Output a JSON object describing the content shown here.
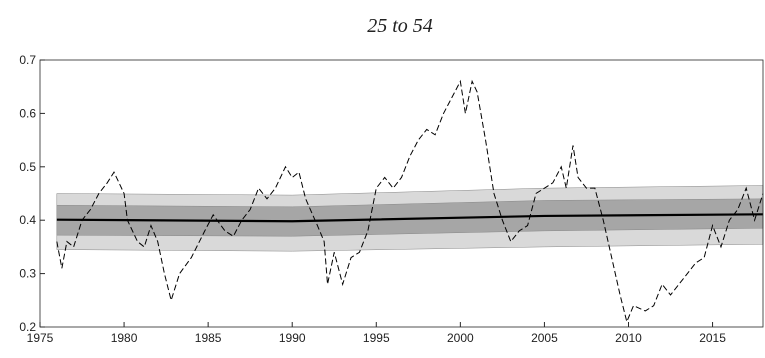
{
  "chart_data": {
    "type": "line",
    "title": "25 to 54",
    "xlim": [
      1975,
      2018
    ],
    "xticks": [
      1975,
      1980,
      1985,
      1990,
      1995,
      2000,
      2005,
      2010,
      2015
    ],
    "ylim": [
      0.2,
      0.7
    ],
    "yticks": [
      0.2,
      0.3,
      0.4,
      0.5,
      0.6,
      0.7
    ],
    "bands": [
      {
        "color": "#d9d9d9",
        "x": [
          1976,
          1990,
          2005,
          2018
        ],
        "lower": [
          0.345,
          0.342,
          0.35,
          0.355
        ],
        "upper": [
          0.45,
          0.447,
          0.46,
          0.465
        ]
      },
      {
        "color": "#a6a6a6",
        "x": [
          1976,
          1990,
          2005,
          2018
        ],
        "lower": [
          0.372,
          0.37,
          0.38,
          0.385
        ],
        "upper": [
          0.428,
          0.425,
          0.437,
          0.44
        ]
      }
    ],
    "series": [
      {
        "style": "solid",
        "color": "#000000",
        "x": [
          1976,
          1990,
          2005,
          2018
        ],
        "values": [
          0.401,
          0.398,
          0.408,
          0.411
        ]
      },
      {
        "style": "dashed",
        "color": "#000000",
        "x": [
          1976,
          1976.3,
          1976.6,
          1977,
          1977.5,
          1978,
          1978.5,
          1979,
          1979.4,
          1979.7,
          1980,
          1980.2,
          1980.8,
          1981.2,
          1981.6,
          1982,
          1982.4,
          1982.8,
          1983.3,
          1984,
          1984.8,
          1985.3,
          1986,
          1986.5,
          1987,
          1987.5,
          1988,
          1988.5,
          1989,
          1989.6,
          1990,
          1990.4,
          1990.8,
          1991.5,
          1991.9,
          1992.1,
          1992.5,
          1993,
          1993.5,
          1994,
          1994.5,
          1995,
          1995.5,
          1996,
          1996.5,
          1997,
          1997.5,
          1998,
          1998.5,
          1999,
          1999.5,
          2000,
          2000.3,
          2000.7,
          2001,
          2001.5,
          2002,
          2002.5,
          2003,
          2003.5,
          2004,
          2004.5,
          2005,
          2005.5,
          2006,
          2006.3,
          2006.7,
          2007,
          2007.5,
          2008,
          2008.5,
          2009,
          2009.5,
          2009.9,
          2010.3,
          2011,
          2011.5,
          2012,
          2012.5,
          2013,
          2014,
          2014.5,
          2015,
          2015.5,
          2016,
          2016.5,
          2017,
          2017.5,
          2018
        ],
        "values": [
          0.36,
          0.31,
          0.36,
          0.35,
          0.4,
          0.42,
          0.45,
          0.47,
          0.49,
          0.47,
          0.45,
          0.4,
          0.36,
          0.35,
          0.39,
          0.36,
          0.3,
          0.25,
          0.3,
          0.33,
          0.38,
          0.41,
          0.38,
          0.37,
          0.4,
          0.42,
          0.46,
          0.44,
          0.46,
          0.5,
          0.48,
          0.49,
          0.44,
          0.39,
          0.36,
          0.28,
          0.34,
          0.28,
          0.33,
          0.34,
          0.38,
          0.46,
          0.48,
          0.46,
          0.48,
          0.52,
          0.55,
          0.57,
          0.56,
          0.6,
          0.63,
          0.66,
          0.6,
          0.66,
          0.64,
          0.55,
          0.45,
          0.4,
          0.36,
          0.38,
          0.39,
          0.45,
          0.46,
          0.47,
          0.5,
          0.46,
          0.54,
          0.48,
          0.46,
          0.46,
          0.4,
          0.33,
          0.26,
          0.21,
          0.24,
          0.23,
          0.24,
          0.28,
          0.26,
          0.28,
          0.32,
          0.33,
          0.39,
          0.35,
          0.4,
          0.42,
          0.46,
          0.4,
          0.45
        ]
      }
    ]
  }
}
